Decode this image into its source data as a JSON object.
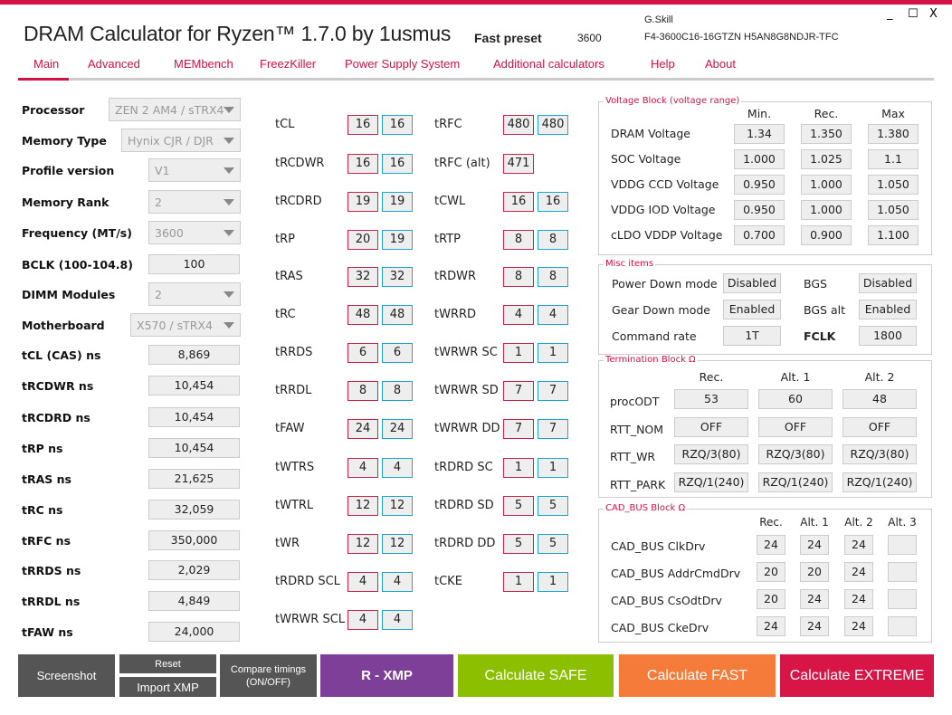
{
  "header": {
    "title": "DRAM Calculator for Ryzen™ 1.7.0 by 1usmus",
    "preset_label": "Fast preset",
    "preset_freq": "3600",
    "vendor": "G.Skill",
    "part_number": "F4-3600C16-16GTZN H5AN8G8NDJR-TFC",
    "minimize": "_",
    "maximize": "☐",
    "close": "X"
  },
  "tabs": [
    "Main",
    "Advanced",
    "MEMbench",
    "FreezKiller",
    "Power Supply System",
    "Additional calculators",
    "Help",
    "About"
  ],
  "left": {
    "dropdowns": [
      {
        "label": "Processor",
        "value": "ZEN 2 AM4 / sTRX4"
      },
      {
        "label": "Memory Type",
        "value": "Hynix CJR / DJR"
      },
      {
        "label": "Profile version",
        "value": "V1"
      },
      {
        "label": "Memory Rank",
        "value": "2"
      },
      {
        "label": "Frequency (MT/s)",
        "value": "3600"
      }
    ],
    "bclk": {
      "label": "BCLK (100-104.8)",
      "value": "100"
    },
    "dimm": {
      "label": "DIMM Modules",
      "value": "2"
    },
    "motherboard": {
      "label": "Motherboard",
      "value": "X570 / sTRX4"
    },
    "ns": [
      {
        "label": "tCL (CAS) ns",
        "value": "8,869"
      },
      {
        "label": "tRCDWR ns",
        "value": "10,454"
      },
      {
        "label": "tRCDRD ns",
        "value": "10,454"
      },
      {
        "label": "tRP ns",
        "value": "10,454"
      },
      {
        "label": "tRAS ns",
        "value": "21,625"
      },
      {
        "label": "tRC ns",
        "value": "32,059"
      },
      {
        "label": "tRFC ns",
        "value": "350,000"
      },
      {
        "label": "tRRDS ns",
        "value": "2,029"
      },
      {
        "label": "tRRDL ns",
        "value": "4,849"
      },
      {
        "label": "tFAW ns",
        "value": "24,000"
      }
    ]
  },
  "timings_col1": [
    [
      "tCL",
      "16",
      "16"
    ],
    [
      "tRCDWR",
      "16",
      "16"
    ],
    [
      "tRCDRD",
      "19",
      "19"
    ],
    [
      "tRP",
      "20",
      "19"
    ],
    [
      "tRAS",
      "32",
      "32"
    ],
    [
      "tRC",
      "48",
      "48"
    ],
    [
      "tRRDS",
      "6",
      "6"
    ],
    [
      "tRRDL",
      "8",
      "8"
    ],
    [
      "tFAW",
      "24",
      "24"
    ],
    [
      "tWTRS",
      "4",
      "4"
    ],
    [
      "tWTRL",
      "12",
      "12"
    ],
    [
      "tWR",
      "12",
      "12"
    ],
    [
      "tRDRD SCL",
      "4",
      "4"
    ],
    [
      "tWRWR SCL",
      "4",
      "4"
    ]
  ],
  "timings_col2": [
    [
      "tRFC",
      "480",
      "480"
    ],
    [
      "tRFC (alt)",
      "471",
      null
    ],
    [
      "tCWL",
      "16",
      "16"
    ],
    [
      "tRTP",
      "8",
      "8"
    ],
    [
      "tRDWR",
      "8",
      "8"
    ],
    [
      "tWRRD",
      "4",
      "4"
    ],
    [
      "tWRWR SC",
      "1",
      "1"
    ],
    [
      "tWRWR SD",
      "7",
      "7"
    ],
    [
      "tWRWR DD",
      "7",
      "7"
    ],
    [
      "tRDRD SC",
      "1",
      "1"
    ],
    [
      "tRDRD SD",
      "5",
      "5"
    ],
    [
      "tRDRD DD",
      "5",
      "5"
    ],
    [
      "tCKE",
      "1",
      "1"
    ]
  ],
  "voltage": {
    "title": "Voltage Block (voltage range)",
    "cols": [
      "Min.",
      "Rec.",
      "Max"
    ],
    "rows": [
      [
        "DRAM Voltage",
        "1.34",
        "1.350",
        "1.380"
      ],
      [
        "SOC Voltage",
        "1.000",
        "1.025",
        "1.1"
      ],
      [
        "VDDG  CCD Voltage",
        "0.950",
        "1.000",
        "1.050"
      ],
      [
        "VDDG  IOD Voltage",
        "0.950",
        "1.000",
        "1.050"
      ],
      [
        "cLDO VDDP Voltage",
        "0.700",
        "0.900",
        "1.100"
      ]
    ]
  },
  "misc": {
    "title": "Misc items",
    "rows": [
      [
        "Power Down mode",
        "Disabled",
        "BGS",
        "Disabled"
      ],
      [
        "Gear Down mode",
        "Enabled",
        "BGS alt",
        "Enabled"
      ],
      [
        "Command rate",
        "1T",
        "FCLK",
        "1800"
      ]
    ]
  },
  "termination": {
    "title": "Termination Block Ω",
    "cols": [
      "Rec.",
      "Alt. 1",
      "Alt. 2"
    ],
    "rows": [
      [
        "procODT",
        "53",
        "60",
        "48"
      ],
      [
        "RTT_NOM",
        "OFF",
        "OFF",
        "OFF"
      ],
      [
        "RTT_WR",
        "RZQ/3(80)",
        "RZQ/3(80)",
        "RZQ/3(80)"
      ],
      [
        "RTT_PARK",
        "RZQ/1(240)",
        "RZQ/1(240)",
        "RZQ/1(240)"
      ]
    ]
  },
  "cadbus": {
    "title": "CAD_BUS Block Ω",
    "cols": [
      "Rec.",
      "Alt. 1",
      "Alt. 2",
      "Alt. 3"
    ],
    "rows": [
      [
        "CAD_BUS ClkDrv",
        "24",
        "24",
        "24",
        ""
      ],
      [
        "CAD_BUS AddrCmdDrv",
        "20",
        "20",
        "24",
        ""
      ],
      [
        "CAD_BUS CsOdtDrv",
        "20",
        "24",
        "24",
        ""
      ],
      [
        "CAD_BUS CkeDrv",
        "24",
        "24",
        "24",
        ""
      ]
    ]
  },
  "buttons": {
    "screenshot": "Screenshot",
    "reset": "Reset",
    "import_xmp": "Import XMP",
    "compare": "Compare timings (ON/OFF)",
    "rxmp": "R - XMP",
    "safe": "Calculate SAFE",
    "fast": "Calculate FAST",
    "extreme": "Calculate EXTREME"
  },
  "colors": {
    "accent": "#d21245",
    "timing_red": "#c8234b",
    "timing_blue": "#1ea5cf",
    "btn_gray": "#555555",
    "btn_purple": "#7d3f98",
    "btn_green": "#8cbf00",
    "btn_orange": "#f47b3a",
    "btn_red": "#d81547"
  }
}
